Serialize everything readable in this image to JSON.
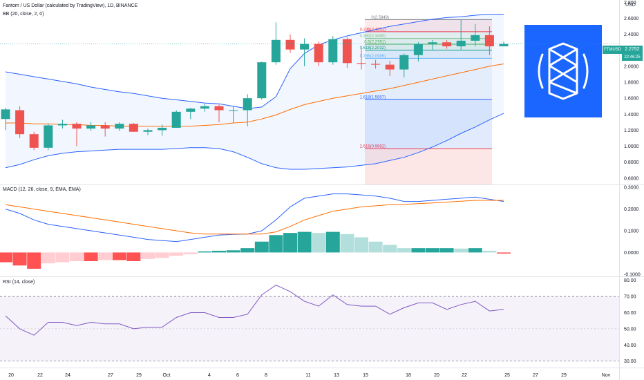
{
  "header": {
    "title": "Fantom / US Dollar (calculated by TradingView), 1D, BINANCE",
    "bb_label": "BB (20, close, 2, 0)",
    "macd_label": "MACD (12, 26, close, 9, EMA, EMA)",
    "rsi_label": "RSI (14, close)"
  },
  "price_axis": {
    "currency": "USD",
    "symbol_tag": "FTMUSD",
    "last_price": "2.2752",
    "countdown": "22:46:25"
  },
  "colors": {
    "up": "#26a69a",
    "down": "#ef5350",
    "bb_band": "#2962ff",
    "bb_basis": "#ff6d00",
    "macd": "#2962ff",
    "signal": "#ff6d00",
    "rsi": "#7e57c2",
    "logo_bg": "#1a66ff"
  },
  "chart_data": [
    {
      "type": "candlestick",
      "title": "Fantom / US Dollar (calculated by TradingView), 1D, BINANCE",
      "x_tick_labels": [
        "20",
        "22",
        "24",
        "27",
        "29",
        "Oct",
        "4",
        "6",
        "8",
        "11",
        "13",
        "15",
        "18",
        "20",
        "22",
        "25",
        "27",
        "29",
        "Nov"
      ],
      "y_tick_labels": [
        "0.6000",
        "0.8000",
        "1.0000",
        "1.2000",
        "1.4000",
        "1.6000",
        "1.8000",
        "2.0000",
        "2.2000",
        "2.4000",
        "2.6000",
        "2.800"
      ],
      "ylim": [
        0.52,
        2.83
      ],
      "candles": [
        {
          "o": 1.34,
          "h": 1.48,
          "l": 1.2,
          "c": 1.46
        },
        {
          "o": 1.45,
          "h": 1.5,
          "l": 1.1,
          "c": 1.15
        },
        {
          "o": 1.15,
          "h": 1.18,
          "l": 0.95,
          "c": 0.98
        },
        {
          "o": 0.98,
          "h": 1.28,
          "l": 0.95,
          "c": 1.26
        },
        {
          "o": 1.26,
          "h": 1.33,
          "l": 1.22,
          "c": 1.28
        },
        {
          "o": 1.28,
          "h": 1.3,
          "l": 1.0,
          "c": 1.22
        },
        {
          "o": 1.22,
          "h": 1.3,
          "l": 1.19,
          "c": 1.26
        },
        {
          "o": 1.26,
          "h": 1.3,
          "l": 1.12,
          "c": 1.22
        },
        {
          "o": 1.22,
          "h": 1.3,
          "l": 1.19,
          "c": 1.28
        },
        {
          "o": 1.28,
          "h": 1.29,
          "l": 1.18,
          "c": 1.18
        },
        {
          "o": 1.18,
          "h": 1.22,
          "l": 1.14,
          "c": 1.2
        },
        {
          "o": 1.2,
          "h": 1.27,
          "l": 1.13,
          "c": 1.23
        },
        {
          "o": 1.23,
          "h": 1.45,
          "l": 1.23,
          "c": 1.43
        },
        {
          "o": 1.43,
          "h": 1.48,
          "l": 1.34,
          "c": 1.47
        },
        {
          "o": 1.47,
          "h": 1.53,
          "l": 1.43,
          "c": 1.5
        },
        {
          "o": 1.5,
          "h": 1.52,
          "l": 1.3,
          "c": 1.45
        },
        {
          "o": 1.45,
          "h": 1.5,
          "l": 1.29,
          "c": 1.45
        },
        {
          "o": 1.45,
          "h": 1.65,
          "l": 1.25,
          "c": 1.6
        },
        {
          "o": 1.6,
          "h": 2.06,
          "l": 1.58,
          "c": 2.05
        },
        {
          "o": 2.05,
          "h": 2.55,
          "l": 2.02,
          "c": 2.33
        },
        {
          "o": 2.33,
          "h": 2.4,
          "l": 2.17,
          "c": 2.21
        },
        {
          "o": 2.21,
          "h": 2.35,
          "l": 2.0,
          "c": 2.28
        },
        {
          "o": 2.28,
          "h": 2.31,
          "l": 2.0,
          "c": 2.05
        },
        {
          "o": 2.05,
          "h": 2.38,
          "l": 2.02,
          "c": 2.34
        },
        {
          "o": 2.34,
          "h": 2.36,
          "l": 1.98,
          "c": 2.04
        },
        {
          "o": 2.04,
          "h": 2.22,
          "l": 1.96,
          "c": 2.03
        },
        {
          "o": 2.03,
          "h": 2.08,
          "l": 1.97,
          "c": 2.02
        },
        {
          "o": 2.02,
          "h": 2.07,
          "l": 1.88,
          "c": 1.96
        },
        {
          "o": 1.96,
          "h": 2.16,
          "l": 1.86,
          "c": 2.14
        },
        {
          "o": 2.14,
          "h": 2.3,
          "l": 2.06,
          "c": 2.28
        },
        {
          "o": 2.28,
          "h": 2.33,
          "l": 2.2,
          "c": 2.3
        },
        {
          "o": 2.3,
          "h": 2.33,
          "l": 2.22,
          "c": 2.25
        },
        {
          "o": 2.25,
          "h": 2.58,
          "l": 2.2,
          "c": 2.32
        },
        {
          "o": 2.32,
          "h": 2.53,
          "l": 2.25,
          "c": 2.39
        },
        {
          "o": 2.39,
          "h": 2.5,
          "l": 2.14,
          "c": 2.25
        },
        {
          "o": 2.25,
          "h": 2.31,
          "l": 2.25,
          "c": 2.28
        }
      ],
      "bb_upper": [
        1.93,
        1.9,
        1.87,
        1.84,
        1.81,
        1.78,
        1.74,
        1.71,
        1.68,
        1.66,
        1.63,
        1.6,
        1.58,
        1.56,
        1.54,
        1.53,
        1.5,
        1.47,
        1.49,
        1.62,
        1.97,
        2.16,
        2.27,
        2.33,
        2.38,
        2.42,
        2.46,
        2.5,
        2.53,
        2.56,
        2.59,
        2.61,
        2.62,
        2.64,
        2.65,
        2.65
      ],
      "bb_basis": [
        1.29,
        1.29,
        1.28,
        1.28,
        1.27,
        1.27,
        1.26,
        1.26,
        1.25,
        1.25,
        1.25,
        1.25,
        1.25,
        1.25,
        1.26,
        1.27,
        1.29,
        1.3,
        1.34,
        1.39,
        1.46,
        1.52,
        1.56,
        1.6,
        1.63,
        1.66,
        1.69,
        1.72,
        1.76,
        1.8,
        1.84,
        1.88,
        1.92,
        1.96,
        2.0,
        2.03
      ],
      "bb_lower": [
        0.73,
        0.77,
        0.83,
        0.88,
        0.91,
        0.93,
        0.94,
        0.95,
        0.96,
        0.96,
        0.96,
        0.96,
        0.97,
        0.98,
        0.98,
        0.97,
        0.93,
        0.86,
        0.78,
        0.73,
        0.71,
        0.71,
        0.72,
        0.73,
        0.74,
        0.76,
        0.78,
        0.82,
        0.86,
        0.92,
        0.99,
        1.07,
        1.16,
        1.24,
        1.33,
        1.41
      ],
      "fib_levels": [
        {
          "label": "0(2.5849)",
          "value": 2.5849,
          "color": "#787b86"
        },
        {
          "label": "0.236(2.4331)",
          "value": 2.4331,
          "color": "#f23645"
        },
        {
          "label": "0.382(2.3490)",
          "value": 2.349,
          "color": "#81c784"
        },
        {
          "label": "0.5(2.2761)",
          "value": 2.2761,
          "color": "#4caf50"
        },
        {
          "label": "0.618(2.2032)",
          "value": 2.2032,
          "color": "#089981"
        },
        {
          "label": "0.786(2.0995)",
          "value": 2.0995,
          "color": "#64b5f6"
        },
        {
          "label": "1.618(1.5857)",
          "value": 1.5857,
          "color": "#2962ff"
        },
        {
          "label": "2.618(0.9682)",
          "value": 0.9682,
          "color": "#f23645"
        }
      ],
      "fib_fills": [
        "#fde6e6",
        "#eaf5ea",
        "#e3f2e6",
        "#dff0ea",
        "#e0eef8",
        "#eef4fb",
        "#dde7fd",
        "#fde2e2",
        "#efe2f5"
      ]
    },
    {
      "type": "histogram+line",
      "title": "MACD (12, 26, close, 9, EMA, EMA)",
      "y_tick_labels": [
        "-0.1000",
        "0.0000",
        "0.1000",
        "0.2000",
        "0.3000"
      ],
      "ylim": [
        -0.11,
        0.31
      ],
      "histogram": [
        -0.045,
        -0.06,
        -0.075,
        -0.05,
        -0.045,
        -0.04,
        -0.04,
        -0.035,
        -0.035,
        -0.04,
        -0.03,
        -0.025,
        -0.015,
        -0.008,
        0.005,
        0.008,
        0.01,
        0.02,
        0.05,
        0.08,
        0.09,
        0.095,
        0.09,
        0.095,
        0.085,
        0.07,
        0.05,
        0.035,
        0.02,
        0.02,
        0.02,
        0.02,
        0.018,
        0.02,
        0.008,
        -0.005
      ],
      "macd": [
        0.2,
        0.18,
        0.15,
        0.13,
        0.12,
        0.11,
        0.1,
        0.09,
        0.08,
        0.07,
        0.06,
        0.055,
        0.05,
        0.06,
        0.07,
        0.08,
        0.083,
        0.085,
        0.1,
        0.15,
        0.21,
        0.25,
        0.26,
        0.27,
        0.27,
        0.265,
        0.26,
        0.25,
        0.235,
        0.235,
        0.24,
        0.245,
        0.25,
        0.255,
        0.245,
        0.235
      ],
      "signal": [
        0.22,
        0.21,
        0.2,
        0.19,
        0.18,
        0.17,
        0.16,
        0.15,
        0.14,
        0.13,
        0.12,
        0.11,
        0.1,
        0.09,
        0.085,
        0.085,
        0.085,
        0.085,
        0.085,
        0.095,
        0.12,
        0.15,
        0.17,
        0.19,
        0.2,
        0.21,
        0.215,
        0.22,
        0.222,
        0.225,
        0.228,
        0.232,
        0.236,
        0.24,
        0.24,
        0.24
      ]
    },
    {
      "type": "line",
      "title": "RSI (14, close)",
      "y_tick_labels": [
        "30.00",
        "40.00",
        "50.00",
        "60.00",
        "70.00",
        "80.00"
      ],
      "ylim": [
        26,
        82
      ],
      "upper_band": 70,
      "lower_band": 30,
      "rsi": [
        58,
        50,
        46,
        54,
        54,
        52,
        54,
        53,
        53,
        50,
        51,
        51,
        57,
        60,
        60,
        57,
        57,
        59,
        71,
        77,
        73,
        67,
        64,
        71,
        65,
        64,
        64,
        59,
        63,
        66,
        66,
        62,
        65,
        67,
        61,
        62
      ]
    }
  ]
}
